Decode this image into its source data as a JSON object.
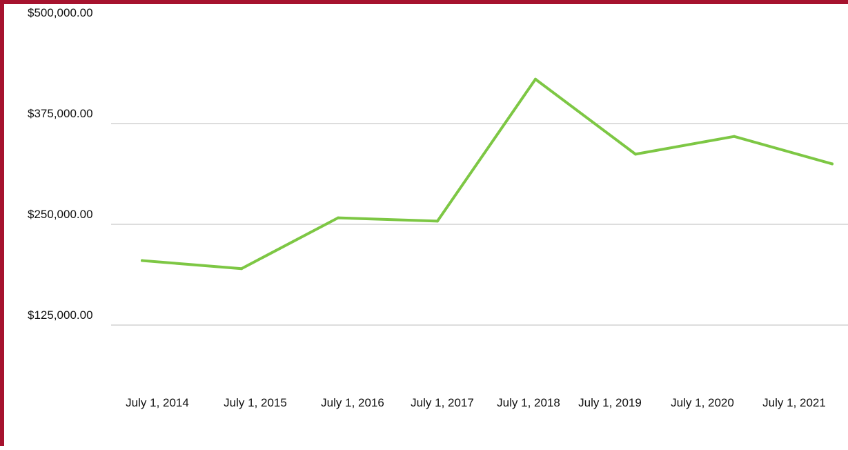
{
  "chart_data": {
    "type": "line",
    "title": "",
    "xlabel": "",
    "ylabel": "",
    "categories": [
      "July 1, 2014",
      "July 1, 2015",
      "July 1, 2016",
      "July 1, 2017",
      "July 1, 2018",
      "July 1, 2019",
      "July 1, 2020",
      "July 1, 2021"
    ],
    "series": [
      {
        "values": [
          205000,
          195000,
          258000,
          254000,
          430000,
          337000,
          359000,
          325000
        ]
      }
    ],
    "y_ticks": [
      125000,
      250000,
      375000,
      500000
    ],
    "y_tick_labels": [
      "$125,000.00",
      "$250,000.00",
      "$375,000.00",
      "$500,000.00"
    ],
    "ylim": [
      125000,
      500000
    ],
    "grid": true,
    "legend": "none",
    "colors": {
      "line": "#7dc744",
      "grid": "#dddddd",
      "frame": "#a6122e",
      "text": "#111111"
    }
  }
}
